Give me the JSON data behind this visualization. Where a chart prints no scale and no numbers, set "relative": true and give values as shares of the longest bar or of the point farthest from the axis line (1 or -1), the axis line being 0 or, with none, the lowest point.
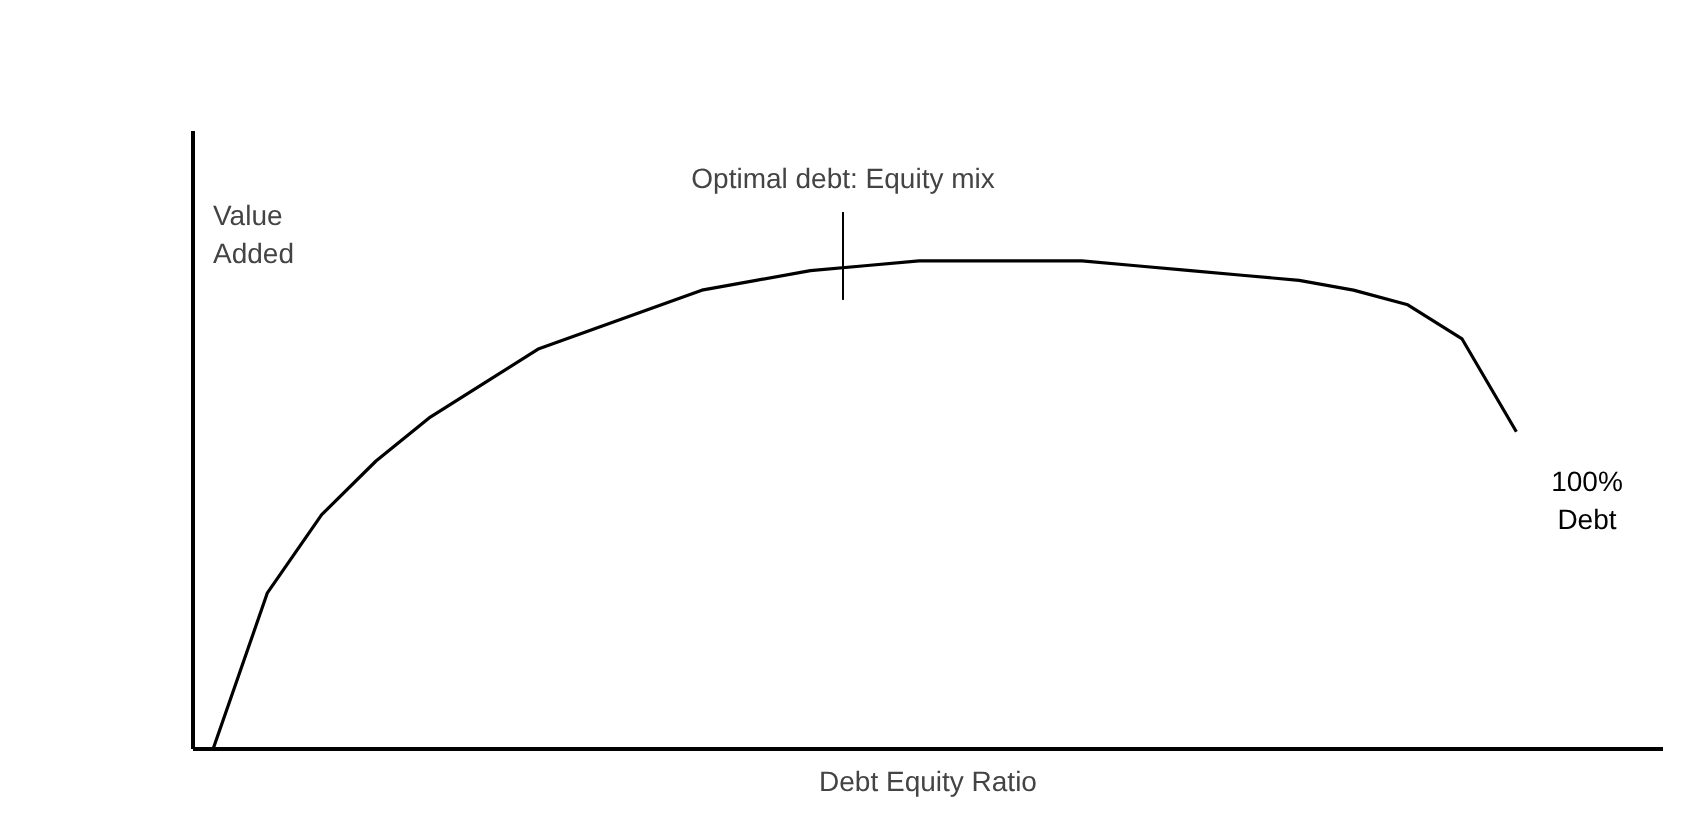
{
  "chart_data": {
    "type": "line",
    "relative": true,
    "xlabel": "Debt Equity Ratio",
    "ylabel": "Value\nAdded",
    "categories": [
      null,
      null,
      null,
      null,
      null,
      null,
      null,
      null,
      null,
      null,
      null,
      null,
      null,
      null,
      null,
      null,
      null,
      null,
      null,
      null,
      null,
      null,
      null,
      null,
      null
    ],
    "series": [
      {
        "color": "#000000",
        "values": [
          0,
          0.32,
          0.48,
          0.59,
          0.68,
          0.75,
          0.82,
          0.86,
          0.9,
          0.94,
          0.96,
          0.98,
          0.99,
          1,
          1,
          1,
          1,
          0.99,
          0.98,
          0.97,
          0.96,
          0.94,
          0.91,
          0.84,
          0.65
        ]
      }
    ],
    "annotations": [
      "Optimal debt: Equity mix",
      "100%\nDebt"
    ]
  }
}
